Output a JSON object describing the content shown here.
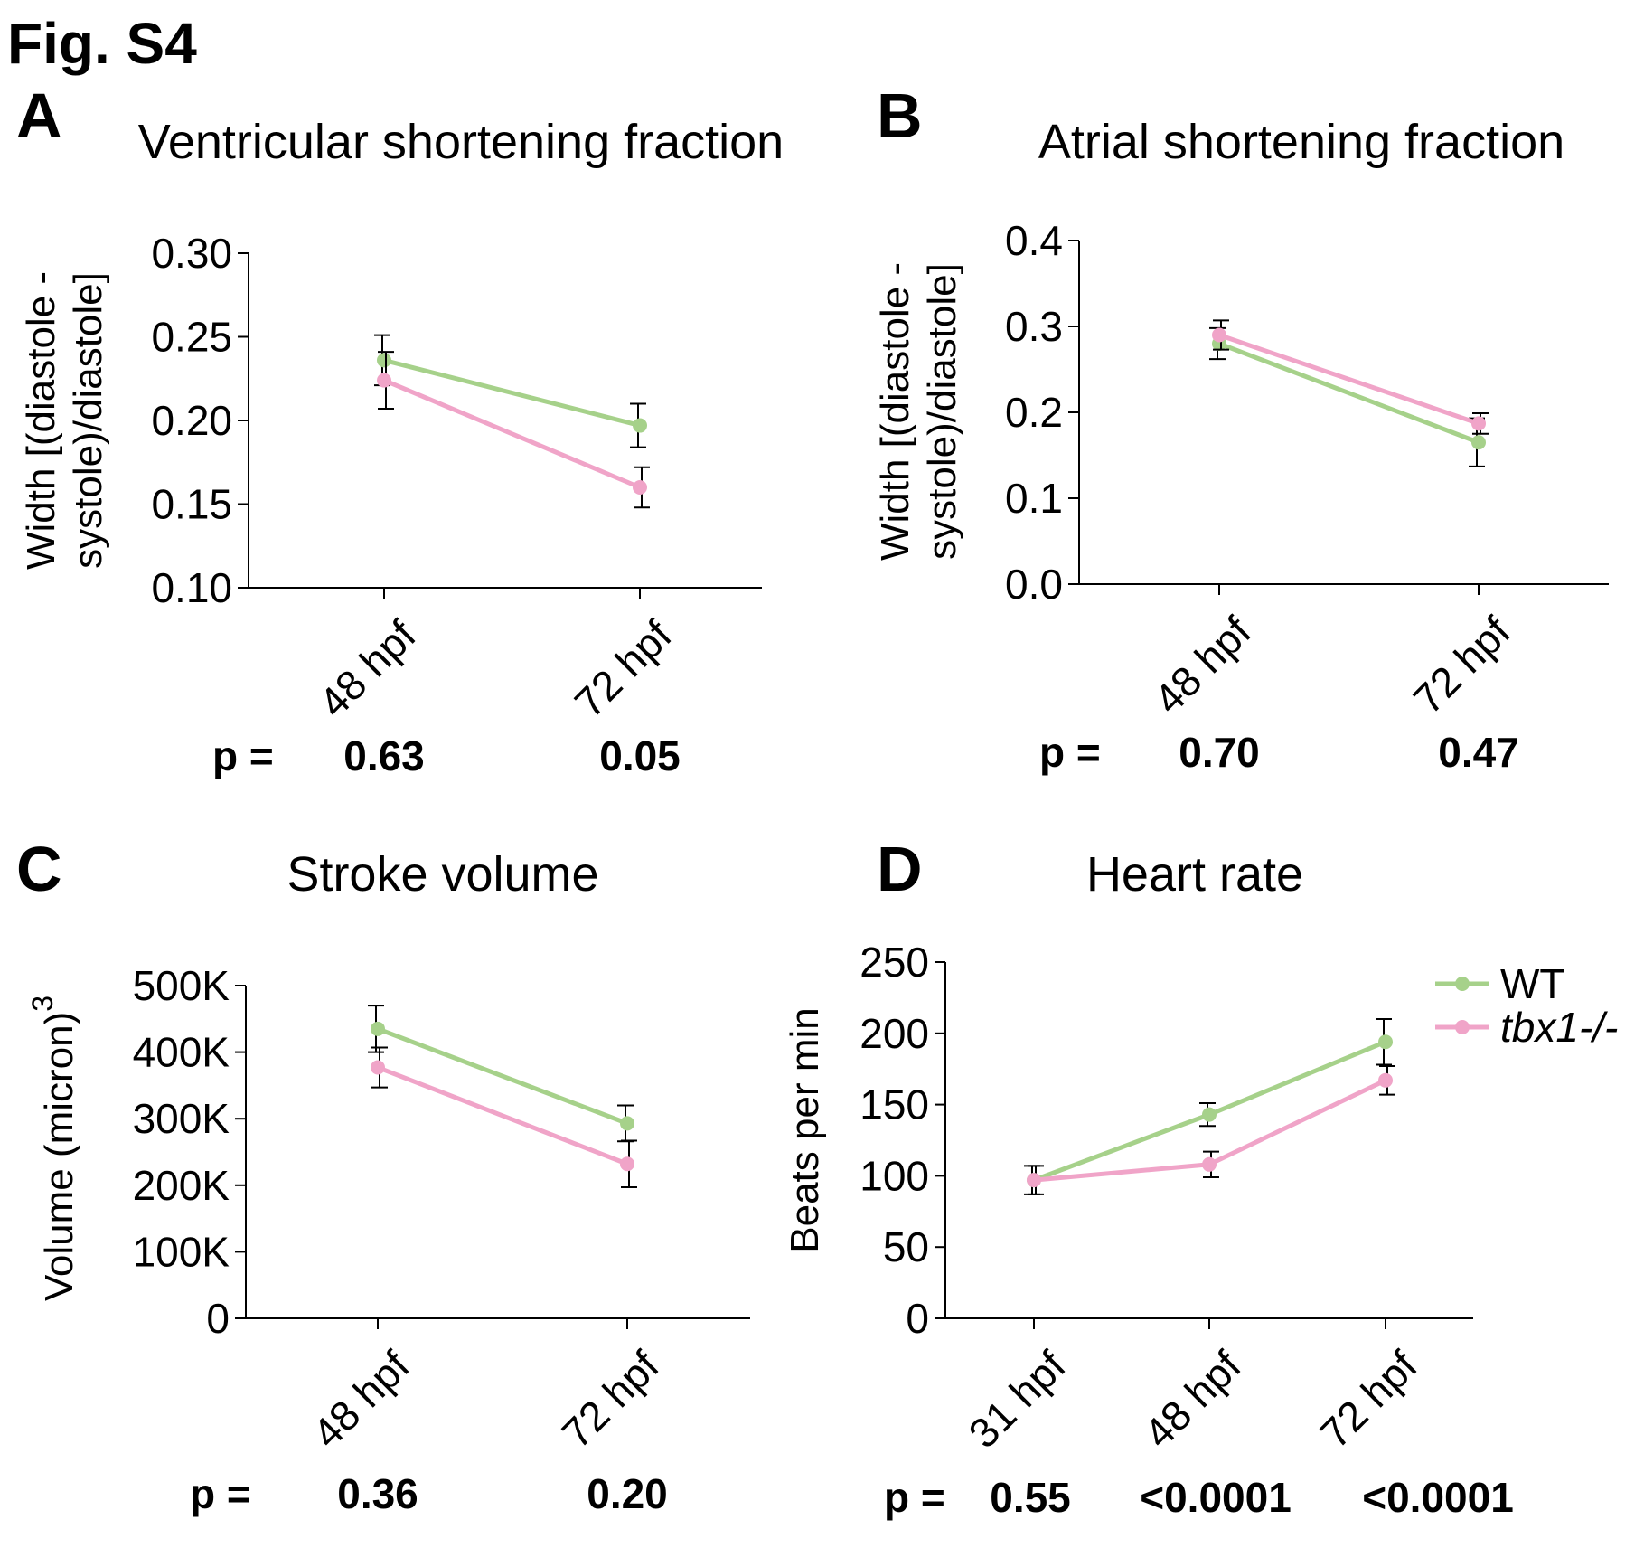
{
  "figure_title": "Fig. S4",
  "p_prefix": "p =",
  "legend": [
    {
      "label": "WT",
      "color": "#a6d18a",
      "italic": false
    },
    {
      "label": "tbx1-/-",
      "color": "#f0a4c8",
      "italic": true
    }
  ],
  "chart_data": [
    {
      "panel": "A",
      "type": "line",
      "title": "Ventricular shortening fraction",
      "ylabel_lines": [
        "Width [(diastole -",
        "systole)/diastole]"
      ],
      "xlabel": "",
      "categories": [
        "48 hpf",
        "72 hpf"
      ],
      "ylim": [
        0.1,
        0.3
      ],
      "yticks": [
        0.1,
        0.15,
        0.2,
        0.25,
        0.3
      ],
      "ytick_labels": [
        "0.10",
        "0.15",
        "0.20",
        "0.25",
        "0.30"
      ],
      "series": [
        {
          "name": "WT",
          "color": "#a6d18a",
          "values": [
            0.236,
            0.197
          ],
          "errors": [
            0.015,
            0.013
          ]
        },
        {
          "name": "tbx1-/-",
          "color": "#f0a4c8",
          "values": [
            0.224,
            0.16
          ],
          "errors": [
            0.017,
            0.012
          ]
        }
      ],
      "p_values": [
        "0.63",
        "0.05"
      ]
    },
    {
      "panel": "B",
      "type": "line",
      "title": "Atrial shortening fraction",
      "ylabel_lines": [
        "Width [(diastole -",
        "systole)/diastole]"
      ],
      "xlabel": "",
      "categories": [
        "48 hpf",
        "72 hpf"
      ],
      "ylim": [
        0.0,
        0.4
      ],
      "yticks": [
        0.0,
        0.1,
        0.2,
        0.3,
        0.4
      ],
      "ytick_labels": [
        "0.0",
        "0.1",
        "0.2",
        "0.3",
        "0.4"
      ],
      "series": [
        {
          "name": "WT",
          "color": "#a6d18a",
          "values": [
            0.28,
            0.165
          ],
          "errors": [
            0.018,
            0.028
          ]
        },
        {
          "name": "tbx1-/-",
          "color": "#f0a4c8",
          "values": [
            0.29,
            0.187
          ],
          "errors": [
            0.017,
            0.012
          ]
        }
      ],
      "p_values": [
        "0.70",
        "0.47"
      ]
    },
    {
      "panel": "C",
      "type": "line",
      "title": "Stroke volume",
      "ylabel_lines": [
        "Volume (micron)"
      ],
      "ylabel_superscript": "3",
      "xlabel": "",
      "categories": [
        "48 hpf",
        "72 hpf"
      ],
      "ylim": [
        0,
        500000
      ],
      "yticks": [
        0,
        100000,
        200000,
        300000,
        400000,
        500000
      ],
      "ytick_labels": [
        "0",
        "100K",
        "200K",
        "300K",
        "400K",
        "500K"
      ],
      "series": [
        {
          "name": "WT",
          "color": "#a6d18a",
          "values": [
            435000,
            293000
          ],
          "errors": [
            35000,
            27000
          ]
        },
        {
          "name": "tbx1-/-",
          "color": "#f0a4c8",
          "values": [
            377000,
            232000
          ],
          "errors": [
            30000,
            35000
          ]
        }
      ],
      "p_values": [
        "0.36",
        "0.20"
      ]
    },
    {
      "panel": "D",
      "type": "line",
      "title": "Heart rate",
      "ylabel_lines": [
        "Beats per min"
      ],
      "xlabel": "",
      "categories": [
        "31 hpf",
        "48 hpf",
        "72 hpf"
      ],
      "ylim": [
        0,
        250
      ],
      "yticks": [
        0,
        50,
        100,
        150,
        200,
        250
      ],
      "ytick_labels": [
        "0",
        "50",
        "100",
        "150",
        "200",
        "250"
      ],
      "series": [
        {
          "name": "WT",
          "color": "#a6d18a",
          "values": [
            97,
            143,
            194
          ],
          "errors": [
            10,
            8,
            16
          ]
        },
        {
          "name": "tbx1-/-",
          "color": "#f0a4c8",
          "values": [
            97,
            108,
            167
          ],
          "errors": [
            10,
            9,
            10
          ]
        }
      ],
      "p_values": [
        "0.55",
        "<0.0001",
        "<0.0001"
      ]
    }
  ]
}
